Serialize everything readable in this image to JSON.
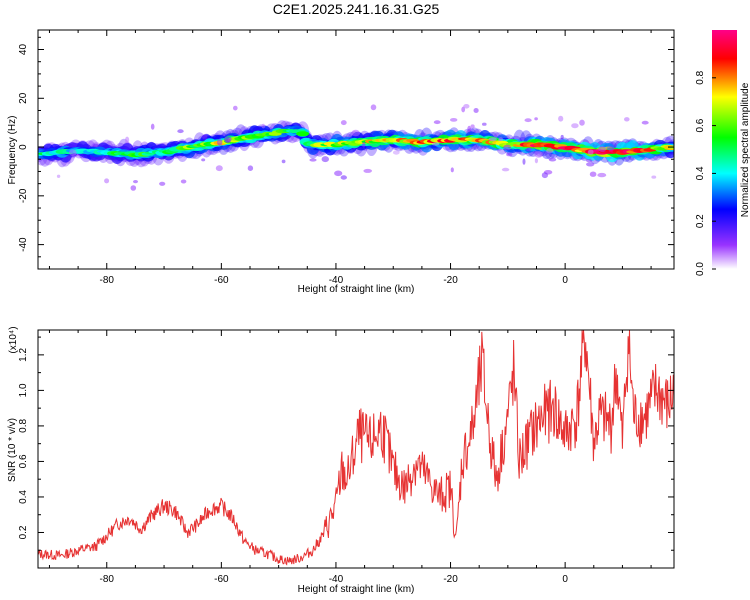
{
  "figure_title": "C2E1.2025.241.16.31.G25",
  "chart_data": [
    {
      "type": "heatmap",
      "title": "C2E1.2025.241.16.31.G25",
      "xlabel": "Height of straight line (km)",
      "ylabel": "Frequency (Hz)",
      "xlim": [
        -92,
        19
      ],
      "ylim": [
        -50,
        48
      ],
      "xticks": [
        -80,
        -60,
        -40,
        -20,
        0
      ],
      "xtick_labels": [
        "-80",
        "-60",
        "-40",
        "-20",
        "0"
      ],
      "yticks": [
        -40,
        -20,
        0,
        20,
        40
      ],
      "ytick_labels": [
        "-40",
        "-20",
        "0",
        "20",
        "40"
      ],
      "colorbar": {
        "label": "Normalized spectral amplitude",
        "range": [
          0,
          1
        ],
        "ticks": [
          0.0,
          0.2,
          0.4,
          0.6,
          0.8
        ],
        "tick_labels": [
          "0.0",
          "0.2",
          "0.4",
          "0.6",
          "0.8"
        ],
        "colors": [
          "#ffffff",
          "#9933ff",
          "#0000ff",
          "#00ffff",
          "#00ff00",
          "#ffff00",
          "#ff0000",
          "#ff0088"
        ]
      },
      "ridge": {
        "x": [
          -92,
          -85,
          -80,
          -75,
          -70,
          -65,
          -60,
          -55,
          -50,
          -46,
          -45,
          -40,
          -35,
          -30,
          -25,
          -20,
          -15,
          -10,
          -5,
          0,
          5,
          10,
          15,
          18
        ],
        "freq": [
          -3,
          -1.5,
          -2,
          -3,
          -2,
          0,
          2,
          4,
          6,
          7,
          1,
          1,
          2,
          3,
          2,
          3,
          3,
          1,
          1,
          0,
          -2,
          -2,
          -1,
          0
        ],
        "amplitude": [
          0.5,
          0.45,
          0.5,
          0.55,
          0.55,
          0.65,
          0.7,
          0.65,
          0.6,
          0.5,
          0.6,
          0.7,
          0.7,
          0.75,
          0.8,
          0.85,
          0.8,
          0.75,
          0.9,
          0.9,
          0.95,
          1.0,
          0.8,
          0.7
        ]
      }
    },
    {
      "type": "line",
      "title": "",
      "xlabel": "Height of straight line (km)",
      "ylabel": "SNR (10 * v/v)",
      "multiplier_label": "(x10⁴)",
      "xlim": [
        -92,
        19
      ],
      "ylim": [
        0,
        1.34
      ],
      "xticks": [
        -80,
        -60,
        -40,
        -20,
        0
      ],
      "xtick_labels": [
        "-80",
        "-60",
        "-40",
        "-20",
        "0"
      ],
      "yticks": [
        0.2,
        0.4,
        0.6,
        0.8,
        1.0,
        1.2
      ],
      "ytick_labels": [
        "0.2",
        "0.4",
        "0.6",
        "0.8",
        "1.0",
        "1.2"
      ],
      "color": "#e63232",
      "series": [
        {
          "name": "SNR",
          "x": [
            -92,
            -88,
            -85,
            -82,
            -80,
            -78,
            -76,
            -74,
            -72,
            -70,
            -68,
            -66,
            -64,
            -62,
            -60,
            -58,
            -56,
            -54,
            -52,
            -50,
            -48,
            -46,
            -44,
            -42,
            -40,
            -39,
            -38,
            -36,
            -34,
            -32,
            -30,
            -28,
            -26,
            -24,
            -22,
            -20,
            -19,
            -18,
            -16,
            -14.5,
            -13,
            -12,
            -10,
            -9,
            -8,
            -6,
            -4,
            -2,
            0,
            2,
            3.5,
            5,
            6,
            8,
            9,
            10,
            11,
            12,
            14,
            16,
            18,
            19
          ],
          "y": [
            0.08,
            0.07,
            0.1,
            0.12,
            0.18,
            0.25,
            0.28,
            0.22,
            0.3,
            0.35,
            0.32,
            0.2,
            0.25,
            0.33,
            0.35,
            0.28,
            0.15,
            0.1,
            0.08,
            0.05,
            0.04,
            0.06,
            0.1,
            0.2,
            0.35,
            0.55,
            0.5,
            0.75,
            0.7,
            0.8,
            0.55,
            0.45,
            0.6,
            0.5,
            0.4,
            0.45,
            0.15,
            0.6,
            0.8,
            1.15,
            0.7,
            0.5,
            0.85,
            1.1,
            0.6,
            0.75,
            0.85,
            0.9,
            0.75,
            0.85,
            1.32,
            0.7,
            0.85,
            0.8,
            1.1,
            0.7,
            1.3,
            0.85,
            0.85,
            1.0,
            0.9,
            1.0
          ]
        }
      ]
    }
  ]
}
